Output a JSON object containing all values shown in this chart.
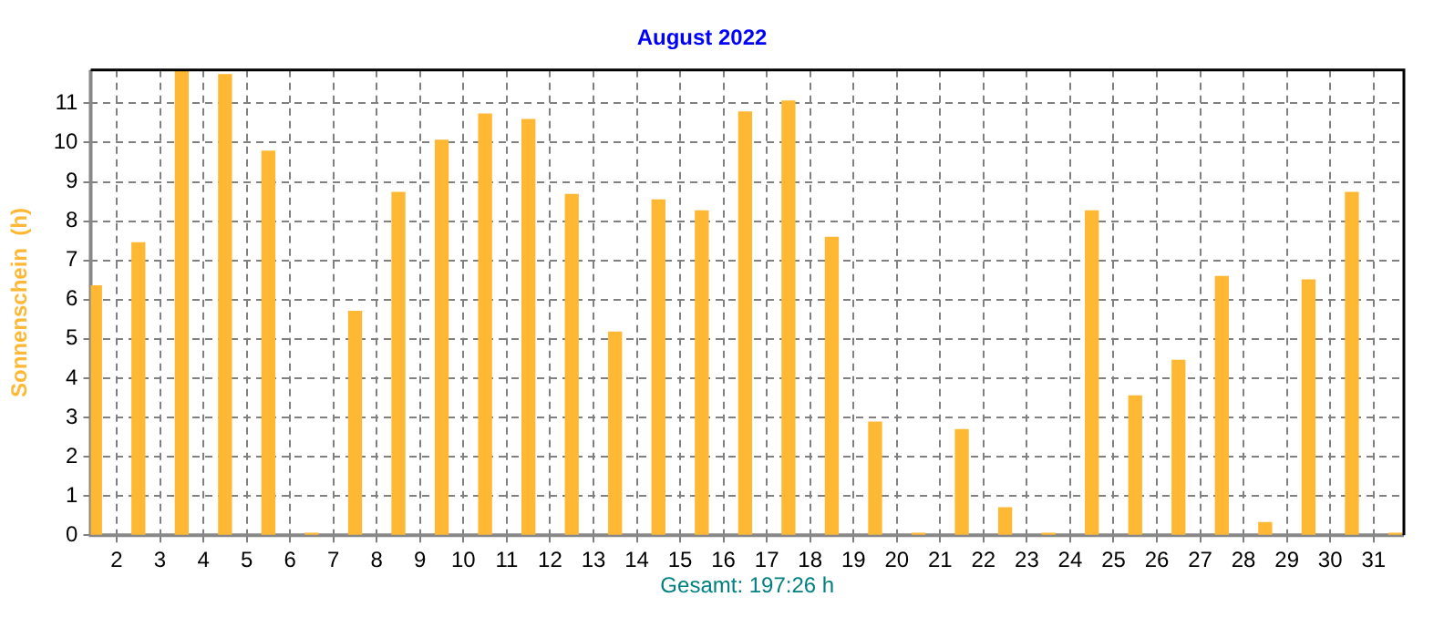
{
  "chart_data": {
    "type": "histogram",
    "title": "August 2022",
    "ylabel": "Sonnenschein  (h)",
    "annotations": [
      "Gesamt: 197:26 h"
    ],
    "bins": [
      1,
      2,
      3,
      4,
      5,
      6,
      7,
      8,
      9,
      10,
      11,
      12,
      13,
      14,
      15,
      16,
      17,
      18,
      19,
      20,
      21,
      22,
      23,
      24,
      25,
      26,
      27,
      28,
      29,
      30,
      31,
      32
    ],
    "values": [
      6.35,
      7.45,
      11.85,
      11.73,
      9.78,
      0.05,
      5.7,
      8.73,
      10.06,
      10.73,
      10.59,
      8.68,
      5.17,
      8.54,
      8.26,
      10.78,
      11.06,
      7.59,
      2.88,
      0.05,
      2.69,
      0.7,
      0.05,
      8.26,
      3.55,
      4.45,
      6.59,
      0.32,
      6.5,
      8.73,
      0.05
    ],
    "color": "#ffb833",
    "xlim": [
      1.4,
      31.7
    ],
    "xticks": [
      2,
      3,
      4,
      5,
      6,
      7,
      8,
      9,
      10,
      11,
      12,
      13,
      14,
      15,
      16,
      17,
      18,
      19,
      20,
      21,
      22,
      23,
      24,
      25,
      26,
      27,
      28,
      29,
      30,
      31
    ],
    "ylim": [
      0,
      11.85
    ],
    "yticks": [
      0,
      1,
      2,
      3,
      4,
      5,
      6,
      7,
      8,
      9,
      10,
      11
    ],
    "grid": true,
    "legend": false
  }
}
